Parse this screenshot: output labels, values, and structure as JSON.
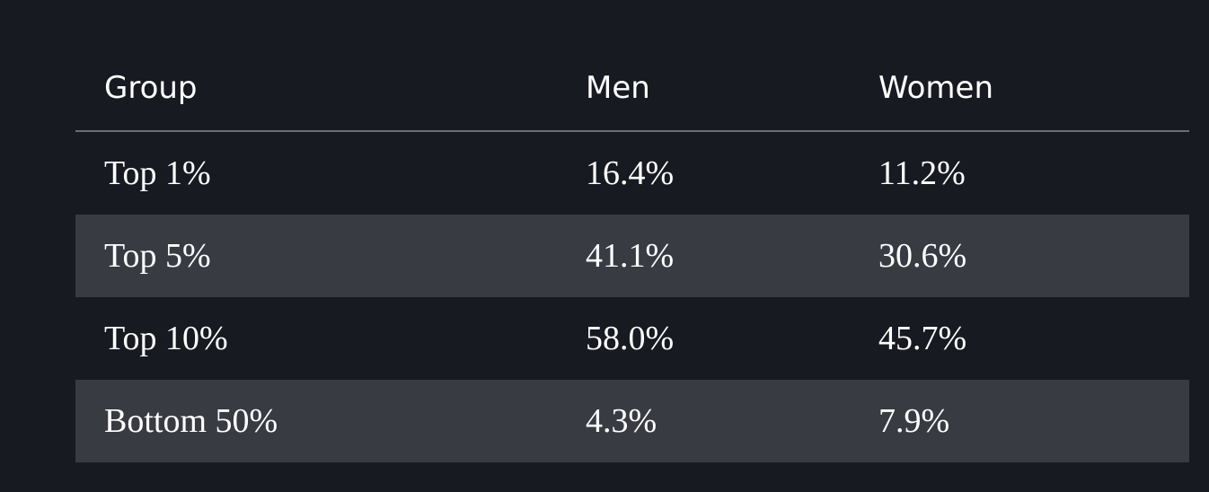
{
  "table": {
    "header": [
      "Group",
      "Men",
      "Women"
    ],
    "rows": [
      [
        "Top 1%",
        "16.4%",
        "11.2%"
      ],
      [
        "Top 5%",
        "41.1%",
        "30.6%"
      ],
      [
        "Top 10%",
        "58.0%",
        "45.7%"
      ],
      [
        "Bottom 50%",
        "4.3%",
        "7.9%"
      ]
    ]
  }
}
